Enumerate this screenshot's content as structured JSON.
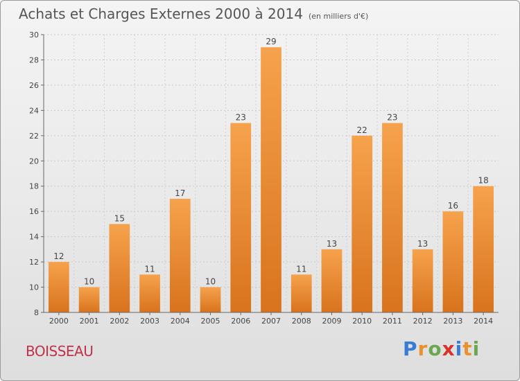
{
  "header": {
    "title": "Achats et Charges Externes 2000 à 2014",
    "subtitle": "(en milliers d'€)"
  },
  "footer": {
    "place": "BOISSEAU",
    "brand": [
      "P",
      "r",
      "o",
      "x",
      "i",
      "t",
      "i"
    ],
    "brand_colors": [
      "#3a7bd5",
      "#e8912d",
      "#6aa84f",
      "#d9342b",
      "#3a7bd5",
      "#e8912d",
      "#6aa84f"
    ]
  },
  "chart_data": {
    "type": "bar",
    "title": "Achats et Charges Externes 2000 à 2014",
    "subtitle": "(en milliers d'€)",
    "categories": [
      "2000",
      "2001",
      "2002",
      "2003",
      "2004",
      "2005",
      "2006",
      "2007",
      "2008",
      "2009",
      "2010",
      "2011",
      "2012",
      "2013",
      "2014"
    ],
    "values": [
      12,
      10,
      15,
      11,
      17,
      10,
      23,
      29,
      11,
      13,
      22,
      23,
      13,
      16,
      18
    ],
    "ylim": [
      8,
      30
    ],
    "yticks": [
      8,
      10,
      12,
      14,
      16,
      18,
      20,
      22,
      24,
      26,
      28,
      30
    ],
    "grid": true,
    "bar_color_top": "#f6a24c",
    "bar_color_bottom": "#d9731d"
  }
}
